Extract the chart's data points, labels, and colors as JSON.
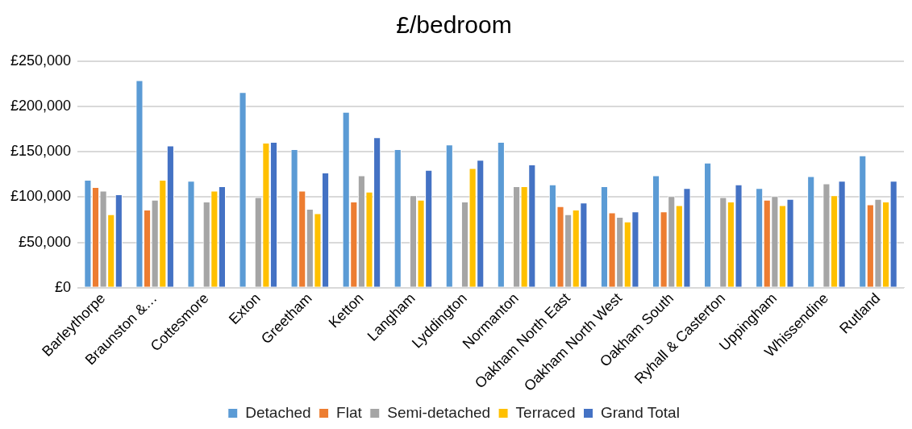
{
  "chart_data": {
    "type": "bar",
    "title": "£/bedroom",
    "categories": [
      "Barleythorpe",
      "Braunston &…",
      "Cottesmore",
      "Exton",
      "Greetham",
      "Ketton",
      "Langham",
      "Lyddington",
      "Normanton",
      "Oakham North East",
      "Oakham North West",
      "Oakham South",
      "Ryhall & Casterton",
      "Uppingham",
      "Whissendine",
      "Rutland"
    ],
    "series": [
      {
        "name": "Detached",
        "color": "#5b9bd5",
        "values": [
          119000,
          229000,
          118000,
          216000,
          153000,
          194000,
          153000,
          158000,
          161000,
          114000,
          112000,
          124000,
          138000,
          110000,
          123000,
          146000
        ]
      },
      {
        "name": "Flat",
        "color": "#ed7d31",
        "values": [
          111000,
          86000,
          null,
          null,
          107000,
          95000,
          null,
          null,
          null,
          90000,
          83000,
          84000,
          null,
          97000,
          null,
          92000
        ]
      },
      {
        "name": "Semi-detached",
        "color": "#a5a5a5",
        "values": [
          107000,
          97000,
          95000,
          100000,
          87000,
          124000,
          102000,
          95000,
          112000,
          81000,
          78000,
          101000,
          100000,
          101000,
          115000,
          98000
        ]
      },
      {
        "name": "Terraced",
        "color": "#ffc000",
        "values": [
          81000,
          119000,
          107000,
          160000,
          82000,
          106000,
          97000,
          132000,
          112000,
          86000,
          73000,
          91000,
          95000,
          91000,
          102000,
          95000
        ]
      },
      {
        "name": "Grand Total",
        "color": "#4472c4",
        "values": [
          103000,
          157000,
          112000,
          161000,
          127000,
          166000,
          130000,
          141000,
          136000,
          94000,
          84000,
          110000,
          114000,
          98000,
          118000,
          118000
        ]
      }
    ],
    "ylim": [
      0,
      250000
    ],
    "yticks": [
      {
        "value": 0,
        "label": "£0"
      },
      {
        "value": 50000,
        "label": "£50,000"
      },
      {
        "value": 100000,
        "label": "£100,000"
      },
      {
        "value": 150000,
        "label": "£150,000"
      },
      {
        "value": 200000,
        "label": "£200,000"
      },
      {
        "value": 250000,
        "label": "£250,000"
      }
    ],
    "grid": "y",
    "legend": "bottom"
  }
}
